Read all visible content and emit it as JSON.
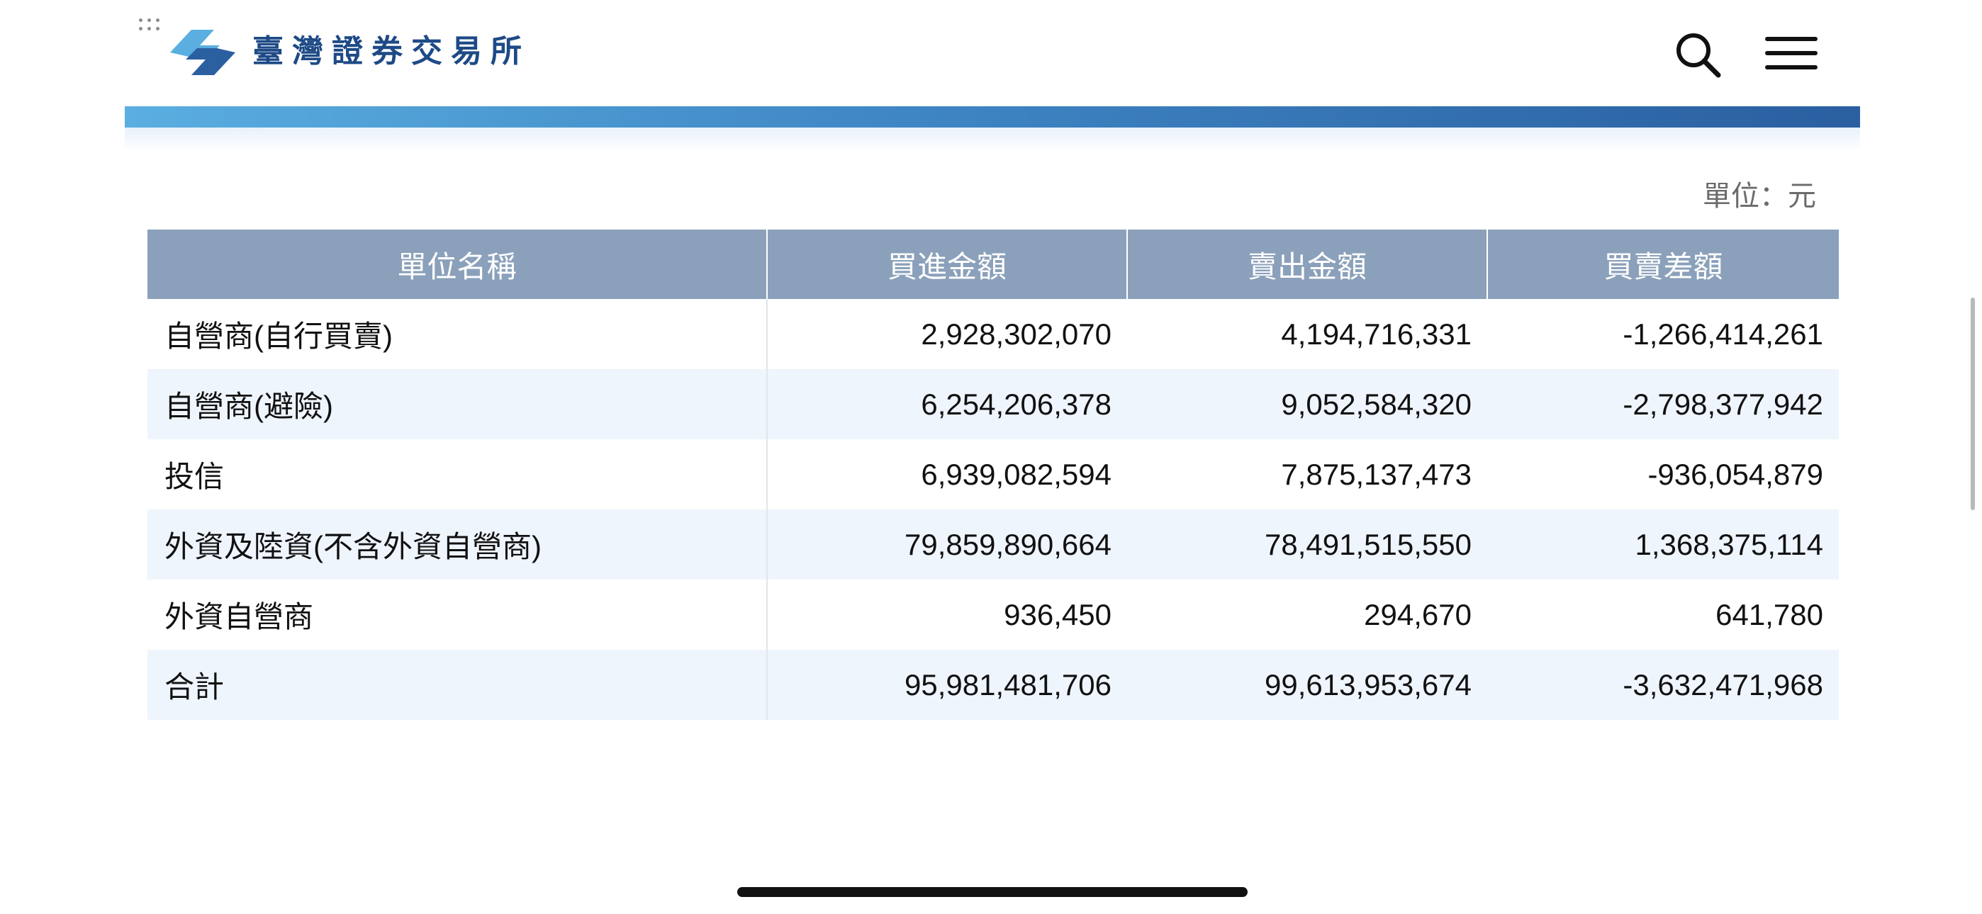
{
  "header": {
    "brand": "臺灣證券交易所",
    "logo_icon": "twse-logo-icon",
    "search_icon": "search-icon",
    "menu_icon": "hamburger-menu-icon",
    "accent_color": "#2a5fa0"
  },
  "unit_label": "單位：元",
  "table": {
    "headers": [
      "單位名稱",
      "買進金額",
      "賣出金額",
      "買賣差額"
    ],
    "rows": [
      {
        "name": "自營商(自行買賣)",
        "buy": "2,928,302,070",
        "sell": "4,194,716,331",
        "diff": "-1,266,414,261"
      },
      {
        "name": "自營商(避險)",
        "buy": "6,254,206,378",
        "sell": "9,052,584,320",
        "diff": "-2,798,377,942"
      },
      {
        "name": "投信",
        "buy": "6,939,082,594",
        "sell": "7,875,137,473",
        "diff": "-936,054,879"
      },
      {
        "name": "外資及陸資(不含外資自營商)",
        "buy": "79,859,890,664",
        "sell": "78,491,515,550",
        "diff": "1,368,375,114"
      },
      {
        "name": "外資自營商",
        "buy": "936,450",
        "sell": "294,670",
        "diff": "641,780"
      },
      {
        "name": "合計",
        "buy": "95,981,481,706",
        "sell": "99,613,953,674",
        "diff": "-3,632,471,968"
      }
    ]
  }
}
